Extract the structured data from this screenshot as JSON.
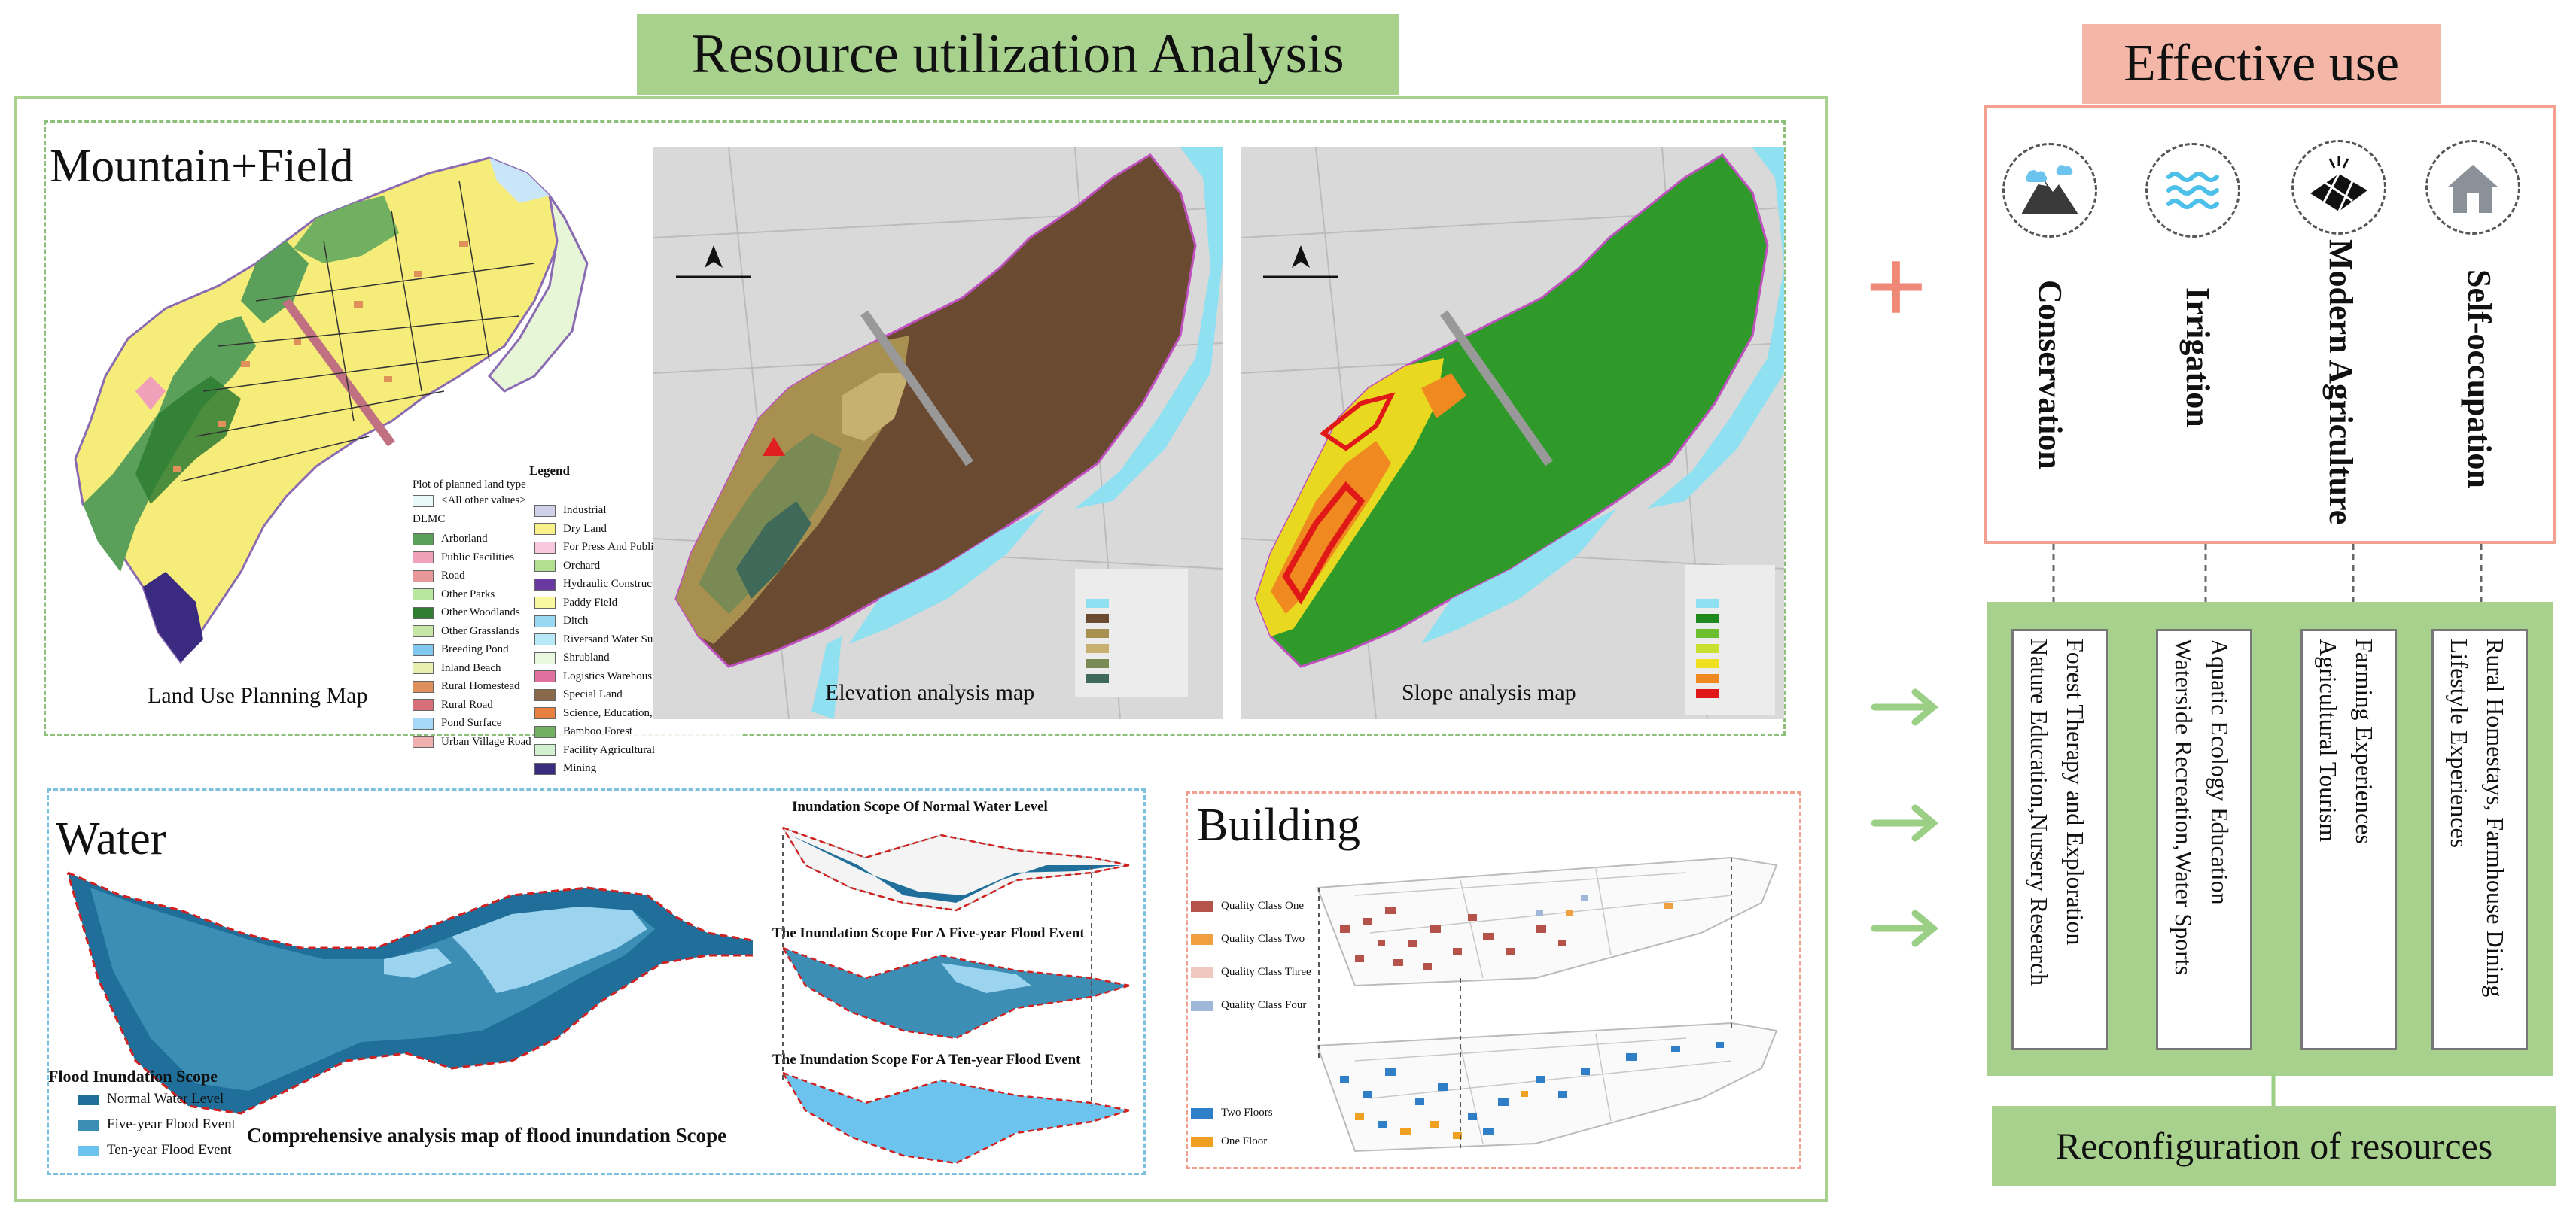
{
  "header": {
    "main_title": "Resource utilization Analysis",
    "right_title": "Effective use",
    "bottom_right_title": "Reconfiguration of resources"
  },
  "mountain_field": {
    "section_title": "Mountain+Field",
    "captions": {
      "land_use": "Land Use Planning Map",
      "elevation": "Elevation analysis map",
      "slope": "Slope analysis map"
    },
    "legend": {
      "title": "Legend",
      "subtitle": "Plot of planned land type",
      "all_other": "<All other values>",
      "code": "DLMC",
      "items_col1": [
        {
          "label": "Arborland",
          "color": "#5aa05a"
        },
        {
          "label": "Public Facilities",
          "color": "#f0a0b8"
        },
        {
          "label": "Road",
          "color": "#e89898"
        },
        {
          "label": "Other Parks",
          "color": "#b8e8a0"
        },
        {
          "label": "Other Woodlands",
          "color": "#2e7d32"
        },
        {
          "label": "Other Grasslands",
          "color": "#c8e6a8"
        },
        {
          "label": "Breeding Pond",
          "color": "#80c8f0"
        },
        {
          "label": "Inland Beach",
          "color": "#e8f0b0"
        },
        {
          "label": "Rural Homestead",
          "color": "#e0905a"
        },
        {
          "label": "Rural Road",
          "color": "#d8707a"
        },
        {
          "label": "Pond Surface",
          "color": "#a8d8f8"
        },
        {
          "label": "Urban Village Road",
          "color": "#f0b0b0"
        }
      ],
      "items_col2": [
        {
          "label": "Industrial",
          "color": "#d0d0e8"
        },
        {
          "label": "Dry Land",
          "color": "#f8f088"
        },
        {
          "label": "For Press And Publication",
          "color": "#f8c8e0"
        },
        {
          "label": "Orchard",
          "color": "#b0e090"
        },
        {
          "label": "Hydraulic Construction",
          "color": "#6a3aa0"
        },
        {
          "label": "Paddy Field",
          "color": "#f8f8a0"
        },
        {
          "label": "Ditch",
          "color": "#98d8f0"
        },
        {
          "label": "Riversand Water Surface",
          "color": "#b8e8f8"
        },
        {
          "label": "Shrubland",
          "color": "#e8f8e0"
        },
        {
          "label": "Logistics Warehousing",
          "color": "#e070a0"
        },
        {
          "label": "Special Land",
          "color": "#8a6a4a"
        },
        {
          "label": "Science, Education, Culture and Health",
          "color": "#e88040"
        },
        {
          "label": "Bamboo Forest",
          "color": "#70b060"
        },
        {
          "label": "Facility Agricultural",
          "color": "#d0f0d0"
        },
        {
          "label": "Mining",
          "color": "#3a2a80"
        }
      ]
    }
  },
  "water": {
    "section_title": "Water",
    "legend_title": "Flood Inundation Scope",
    "legend_items": [
      {
        "label": "Normal Water Level",
        "color": "#1f6f9a"
      },
      {
        "label": "Five-year Flood Event",
        "color": "#3d8eb5"
      },
      {
        "label": "Ten-year Flood Event",
        "color": "#6cc4ee"
      }
    ],
    "main_caption": "Comprehensive analysis map of flood inundation Scope",
    "stack_labels": [
      "Inundation Scope Of Normal Water Level",
      "The Inundation Scope For A Five-year Flood Event",
      "The Inundation Scope For A Ten-year Flood Event"
    ]
  },
  "building": {
    "section_title": "Building",
    "quality_legend": [
      {
        "label": "Quality Class One",
        "color": "#b5524a"
      },
      {
        "label": "Quality Class Two",
        "color": "#f0a040"
      },
      {
        "label": "Quality Class Three",
        "color": "#f0c8c0"
      },
      {
        "label": "Quality Class Four",
        "color": "#a0b8d8"
      }
    ],
    "floor_legend": [
      {
        "label": "Two Floors",
        "color": "#2f7fc8"
      },
      {
        "label": "One Floor",
        "color": "#f0a020"
      }
    ]
  },
  "effective_use": {
    "plus_symbol": "+",
    "items": [
      {
        "label": "Conservation",
        "icon": "mountain-cloud-icon"
      },
      {
        "label": "Irrigation",
        "icon": "water-waves-icon"
      },
      {
        "label": "Modern Agriculture",
        "icon": "solar-panel-icon"
      },
      {
        "label": "Self-occupation",
        "icon": "house-icon"
      }
    ]
  },
  "experiences": [
    {
      "line1": "Forest Therapy and Exploration",
      "line2": "Nature Education,Nursery Research"
    },
    {
      "line1": "Aquatic Ecology Education",
      "line2": "Waterside Recreation,Water Sports"
    },
    {
      "line1": "Farming Experiences",
      "line2": "Agricultural Tourism"
    },
    {
      "line1": "Rural Homestays, Farmhouse Dining",
      "line2": "Lifestyle Experiences"
    }
  ],
  "colors": {
    "green": "#a9d18e",
    "pink": "#f4b6a6",
    "accent_plus": "#f08878",
    "arrow_green": "#9ccf86"
  }
}
